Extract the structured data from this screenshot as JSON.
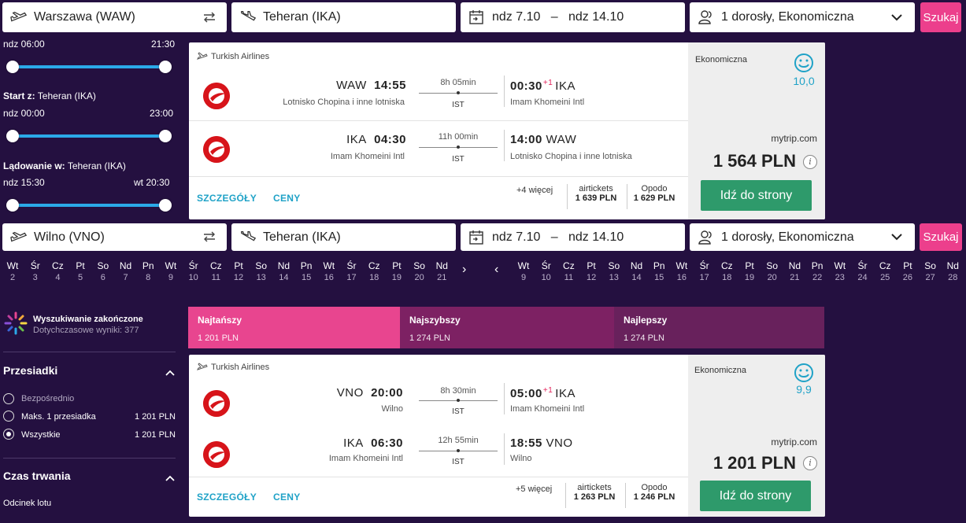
{
  "top": {
    "from": "Warszawa (WAW)",
    "to": "Teheran (IKA)",
    "dates": "ndz 7.10   –   ndz 14.10",
    "passengers": "1 dorosły, Ekonomiczna",
    "search_label": "Szukaj"
  },
  "side_top": {
    "dep_start": "ndz 06:00",
    "dep_end": "21:30",
    "start_label": "Start z:",
    "start_value": "Teheran (IKA)",
    "start_from": "ndz 00:00",
    "start_to": "23:00",
    "land_label": "Lądowanie w:",
    "land_value": "Teheran (IKA)",
    "land_from": "ndz 15:30",
    "land_to": "wt 20:30"
  },
  "card1": {
    "airline": "Turkish Airlines",
    "out": {
      "from_code": "WAW",
      "dep": "14:55",
      "from_name": "Lotnisko Chopina i inne lotniska",
      "duration": "8h 05min",
      "via": "IST",
      "arr": "00:30",
      "plus": "+1",
      "to_code": "IKA",
      "to_name": "Imam Khomeini Intl"
    },
    "ret": {
      "from_code": "IKA",
      "dep": "04:30",
      "from_name": "Imam Khomeini Intl",
      "duration": "11h 00min",
      "via": "IST",
      "arr": "14:00",
      "to_code": "WAW",
      "to_name": "Lotnisko Chopina i inne lotniska"
    },
    "details": "SZCZEGÓŁY",
    "prices": "CENY",
    "more": "+4 więcej",
    "prov1": {
      "name": "airtickets",
      "price": "1 639 PLN"
    },
    "prov2": {
      "name": "Opodo",
      "price": "1 629 PLN"
    },
    "class": "Ekonomiczna",
    "score": "10,0",
    "site": "mytrip.com",
    "price": "1 564 PLN",
    "go": "Idź do strony"
  },
  "bottom": {
    "from": "Wilno (VNO)",
    "to": "Teheran (IKA)",
    "dates": "ndz 7.10   –   ndz 14.10",
    "passengers": "1 dorosły, Ekonomiczna",
    "search_label": "Szukaj"
  },
  "dates_left": [
    {
      "d": "Wt",
      "n": "2"
    },
    {
      "d": "Śr",
      "n": "3"
    },
    {
      "d": "Cz",
      "n": "4"
    },
    {
      "d": "Pt",
      "n": "5"
    },
    {
      "d": "So",
      "n": "6"
    },
    {
      "d": "Nd",
      "n": "7"
    },
    {
      "d": "Pn",
      "n": "8"
    },
    {
      "d": "Wt",
      "n": "9"
    },
    {
      "d": "Śr",
      "n": "10"
    },
    {
      "d": "Cz",
      "n": "11"
    },
    {
      "d": "Pt",
      "n": "12"
    },
    {
      "d": "So",
      "n": "13"
    },
    {
      "d": "Nd",
      "n": "14"
    },
    {
      "d": "Pn",
      "n": "15"
    },
    {
      "d": "Wt",
      "n": "16"
    },
    {
      "d": "Śr",
      "n": "17"
    },
    {
      "d": "Cz",
      "n": "18"
    },
    {
      "d": "Pt",
      "n": "19"
    },
    {
      "d": "So",
      "n": "20"
    },
    {
      "d": "Nd",
      "n": "21"
    }
  ],
  "dates_right": [
    {
      "d": "Wt",
      "n": "9"
    },
    {
      "d": "Śr",
      "n": "10"
    },
    {
      "d": "Cz",
      "n": "11"
    },
    {
      "d": "Pt",
      "n": "12"
    },
    {
      "d": "So",
      "n": "13"
    },
    {
      "d": "Nd",
      "n": "14"
    },
    {
      "d": "Pn",
      "n": "15"
    },
    {
      "d": "Wt",
      "n": "16"
    },
    {
      "d": "Śr",
      "n": "17"
    },
    {
      "d": "Cz",
      "n": "18"
    },
    {
      "d": "Pt",
      "n": "19"
    },
    {
      "d": "So",
      "n": "20"
    },
    {
      "d": "Nd",
      "n": "21"
    },
    {
      "d": "Pn",
      "n": "22"
    },
    {
      "d": "Wt",
      "n": "23"
    },
    {
      "d": "Śr",
      "n": "24"
    },
    {
      "d": "Cz",
      "n": "25"
    },
    {
      "d": "Pt",
      "n": "26"
    },
    {
      "d": "So",
      "n": "27"
    },
    {
      "d": "Nd",
      "n": "28"
    }
  ],
  "status": {
    "title": "Wyszukiwanie zakończone",
    "sub": "Dotychczasowe wyniki: 377"
  },
  "sort": [
    {
      "label": "Najtańszy",
      "price": "1 201 PLN",
      "color": "#e8458f"
    },
    {
      "label": "Najszybszy",
      "price": "1 274 PLN",
      "color": "#7d2163"
    },
    {
      "label": "Najlepszy",
      "price": "1 274 PLN",
      "color": "#68215c"
    }
  ],
  "filters": {
    "stops_title": "Przesiadki",
    "options": [
      {
        "label": "Bezpośrednio",
        "price": "",
        "selected": false
      },
      {
        "label": "Maks. 1 przesiadka",
        "price": "1 201 PLN",
        "selected": false
      },
      {
        "label": "Wszystkie",
        "price": "1 201 PLN",
        "selected": true
      }
    ],
    "duration_title": "Czas trwania",
    "segment_label": "Odcinek lotu"
  },
  "card2": {
    "airline": "Turkish Airlines",
    "out": {
      "from_code": "VNO",
      "dep": "20:00",
      "from_name": "Wilno",
      "duration": "8h 30min",
      "via": "IST",
      "arr": "05:00",
      "plus": "+1",
      "to_code": "IKA",
      "to_name": "Imam Khomeini Intl"
    },
    "ret": {
      "from_code": "IKA",
      "dep": "06:30",
      "from_name": "Imam Khomeini Intl",
      "duration": "12h 55min",
      "via": "IST",
      "arr": "18:55",
      "to_code": "VNO",
      "to_name": "Wilno"
    },
    "details": "SZCZEGÓŁY",
    "prices": "CENY",
    "more": "+5 więcej",
    "prov1": {
      "name": "airtickets",
      "price": "1 263 PLN"
    },
    "prov2": {
      "name": "Opodo",
      "price": "1 246 PLN"
    },
    "class": "Ekonomiczna",
    "score": "9,9",
    "site": "mytrip.com",
    "price": "1 201 PLN",
    "go": "Idź do strony"
  }
}
